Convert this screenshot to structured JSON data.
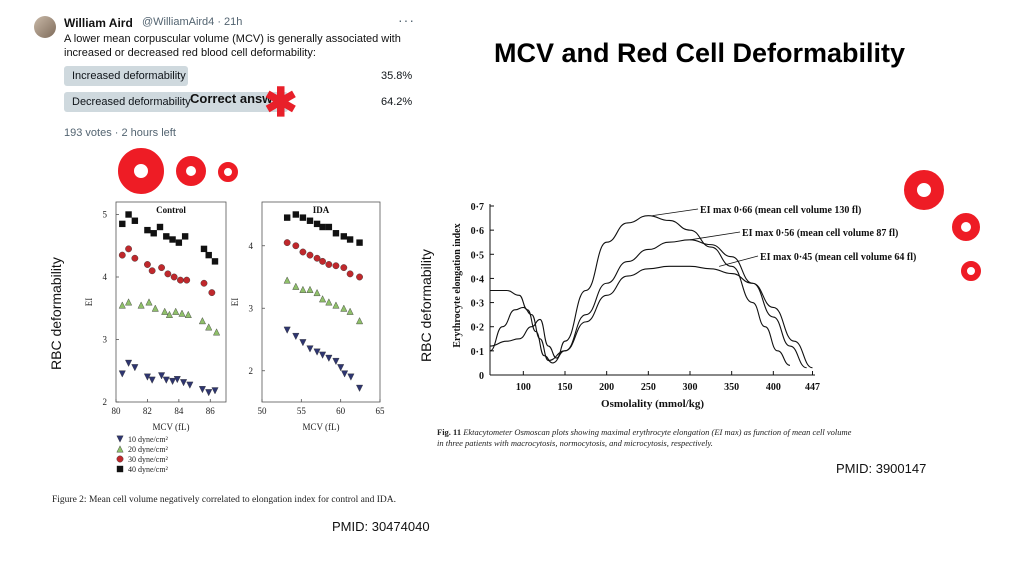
{
  "tweet": {
    "author_name": "William Aird",
    "author_handle": "@WilliamAird4 · 21h",
    "more_icon": "more-icon",
    "question": "A lower mean corpuscular volume (MCV) is generally associated with increased or decreased red blood cell deformability:",
    "poll": [
      {
        "label": "Increased deformability",
        "percent": "35.8%",
        "fill": 0.358
      },
      {
        "label": "Decreased deformability",
        "percent": "64.2%",
        "fill": 0.642
      }
    ],
    "correct_answer": "Correct answer",
    "votes": "193 votes · 2 hours left"
  },
  "title": "MCV and Red Cell Deformability",
  "left_ylabel": "RBC deformability",
  "right_ylabel": "RBC deformability",
  "colors": {
    "accent_red": "#ee1c25",
    "poll_bar": "#cfd9de",
    "navy": "#2e3570",
    "green": "#8fbf6a",
    "red": "#c0282c",
    "black": "#111111"
  },
  "left_figure": {
    "caption": "Figure 2: Mean cell volume negatively correlated to elongation index for control and IDA.",
    "pmid": "PMID: 30474040"
  },
  "right_figure": {
    "caption_label": "Fig. 11",
    "caption_line1": "Ektacytometer Osmoscan plots showing maximal erythrocyte elongation (EI max) as function of mean cell volume",
    "caption_line2": "in three patients with macrocytosis, normocytosis, and microcytosis, respectively.",
    "pmid": "PMID: 3900147"
  },
  "chart_data": [
    {
      "type": "scatter",
      "title": "Control",
      "xlabel": "MCV (fL)",
      "ylabel": "EI",
      "xlim": [
        80,
        87
      ],
      "ylim": [
        2,
        5.2
      ],
      "xticks": [
        80,
        82,
        84,
        86
      ],
      "yticks": [
        2,
        3,
        4,
        5
      ],
      "series": [
        {
          "name": "10 dyne/cm²",
          "color": "#2e3570",
          "marker": "triangle-down",
          "x": [
            80.4,
            80.8,
            81.2,
            82.0,
            82.3,
            82.9,
            83.2,
            83.6,
            83.9,
            84.3,
            84.7,
            85.5,
            85.9,
            86.3
          ],
          "y": [
            2.45,
            2.62,
            2.55,
            2.4,
            2.35,
            2.42,
            2.35,
            2.33,
            2.36,
            2.31,
            2.27,
            2.2,
            2.15,
            2.18
          ]
        },
        {
          "name": "20 dyne/cm²",
          "color": "#8fbf6a",
          "marker": "triangle-up",
          "x": [
            80.4,
            80.8,
            81.6,
            82.1,
            82.5,
            83.1,
            83.4,
            83.8,
            84.2,
            84.6,
            85.5,
            85.9,
            86.4
          ],
          "y": [
            3.55,
            3.6,
            3.55,
            3.6,
            3.5,
            3.45,
            3.4,
            3.45,
            3.42,
            3.4,
            3.3,
            3.2,
            3.12
          ]
        },
        {
          "name": "30 dyne/cm²",
          "color": "#c0282c",
          "marker": "circle",
          "x": [
            80.4,
            80.8,
            81.2,
            82.0,
            82.3,
            82.9,
            83.3,
            83.7,
            84.1,
            84.5,
            85.6,
            86.1
          ],
          "y": [
            4.35,
            4.45,
            4.3,
            4.2,
            4.1,
            4.15,
            4.05,
            4.0,
            3.95,
            3.95,
            3.9,
            3.75
          ]
        },
        {
          "name": "40 dyne/cm²",
          "color": "#111111",
          "marker": "square",
          "x": [
            80.4,
            80.8,
            81.2,
            82.0,
            82.4,
            82.8,
            83.2,
            83.6,
            84.0,
            84.4,
            85.6,
            85.9,
            86.3
          ],
          "y": [
            4.85,
            5.0,
            4.9,
            4.75,
            4.7,
            4.8,
            4.65,
            4.6,
            4.55,
            4.65,
            4.45,
            4.35,
            4.25
          ]
        }
      ],
      "legend": [
        "10 dyne/cm²",
        "20 dyne/cm²",
        "30 dyne/cm²",
        "40 dyne/cm²"
      ],
      "legend_position": "bottom"
    },
    {
      "type": "scatter",
      "title": "IDA",
      "xlabel": "MCV (fL)",
      "ylabel": "EI",
      "xlim": [
        50,
        65
      ],
      "ylim": [
        1.5,
        4.7
      ],
      "xticks": [
        50,
        55,
        60,
        65
      ],
      "yticks": [
        2,
        3,
        4
      ],
      "series": [
        {
          "name": "10 dyne/cm²",
          "color": "#2e3570",
          "marker": "triangle-down",
          "x": [
            53.2,
            54.3,
            55.2,
            56.1,
            57.0,
            57.7,
            58.5,
            59.4,
            60.0,
            60.5,
            61.3,
            62.4
          ],
          "y": [
            2.65,
            2.55,
            2.45,
            2.35,
            2.3,
            2.25,
            2.2,
            2.15,
            2.05,
            1.95,
            1.9,
            1.72
          ]
        },
        {
          "name": "20 dyne/cm²",
          "color": "#8fbf6a",
          "marker": "triangle-up",
          "x": [
            53.2,
            54.3,
            55.2,
            56.1,
            57.0,
            57.7,
            58.5,
            59.4,
            60.4,
            61.2,
            62.4
          ],
          "y": [
            3.45,
            3.35,
            3.3,
            3.3,
            3.25,
            3.15,
            3.1,
            3.05,
            3.0,
            2.95,
            2.8
          ]
        },
        {
          "name": "30 dyne/cm²",
          "color": "#c0282c",
          "marker": "circle",
          "x": [
            53.2,
            54.3,
            55.2,
            56.1,
            57.0,
            57.7,
            58.5,
            59.4,
            60.4,
            61.2,
            62.4
          ],
          "y": [
            4.05,
            4.0,
            3.9,
            3.85,
            3.8,
            3.75,
            3.7,
            3.68,
            3.65,
            3.55,
            3.5
          ]
        },
        {
          "name": "40 dyne/cm²",
          "color": "#111111",
          "marker": "square",
          "x": [
            53.2,
            54.3,
            55.2,
            56.1,
            57.0,
            57.7,
            58.5,
            59.4,
            60.4,
            61.2,
            62.4
          ],
          "y": [
            4.45,
            4.5,
            4.45,
            4.4,
            4.35,
            4.3,
            4.3,
            4.2,
            4.15,
            4.1,
            4.05
          ]
        }
      ]
    },
    {
      "type": "line",
      "xlabel": "Osmolality (mmol/kg)",
      "ylabel": "Erythrocyte elongation index",
      "xlim": [
        60,
        450
      ],
      "ylim": [
        0,
        0.7
      ],
      "xticks": [
        100,
        150,
        200,
        250,
        300,
        350,
        400,
        447
      ],
      "yticks": [
        0,
        0.1,
        0.2,
        0.3,
        0.4,
        0.5,
        0.6,
        0.7
      ],
      "yticklabels": [
        "0",
        "0·1",
        "0·2",
        "0·3",
        "0·4",
        "0·5",
        "0·6",
        "0·7"
      ],
      "series": [
        {
          "label": "EI max 0·66 (mean cell volume 130 fl)",
          "x": [
            60,
            80,
            95,
            110,
            120,
            130,
            140,
            150,
            175,
            200,
            225,
            250,
            275,
            300,
            325,
            350,
            375,
            390,
            405,
            420
          ],
          "y": [
            0.12,
            0.14,
            0.15,
            0.2,
            0.23,
            0.12,
            0.07,
            0.14,
            0.35,
            0.55,
            0.63,
            0.66,
            0.64,
            0.6,
            0.53,
            0.45,
            0.3,
            0.2,
            0.1,
            0.04
          ]
        },
        {
          "label": "EI max 0·56 (mean cell volume 87 fl)",
          "x": [
            60,
            80,
            95,
            105,
            115,
            125,
            135,
            150,
            175,
            200,
            225,
            250,
            275,
            300,
            325,
            350,
            375,
            400,
            420,
            440
          ],
          "y": [
            0.35,
            0.35,
            0.33,
            0.27,
            0.18,
            0.08,
            0.05,
            0.1,
            0.25,
            0.38,
            0.47,
            0.52,
            0.55,
            0.56,
            0.54,
            0.49,
            0.38,
            0.24,
            0.12,
            0.03
          ]
        },
        {
          "label": "EI max 0·45 (mean cell volume 64 fl)",
          "x": [
            60,
            75,
            90,
            100,
            110,
            120,
            130,
            150,
            175,
            200,
            225,
            250,
            275,
            300,
            325,
            350,
            375,
            400,
            425,
            447
          ],
          "y": [
            0.1,
            0.2,
            0.27,
            0.28,
            0.25,
            0.15,
            0.06,
            0.1,
            0.22,
            0.33,
            0.41,
            0.44,
            0.45,
            0.45,
            0.44,
            0.42,
            0.38,
            0.28,
            0.14,
            0.03
          ]
        }
      ]
    }
  ]
}
